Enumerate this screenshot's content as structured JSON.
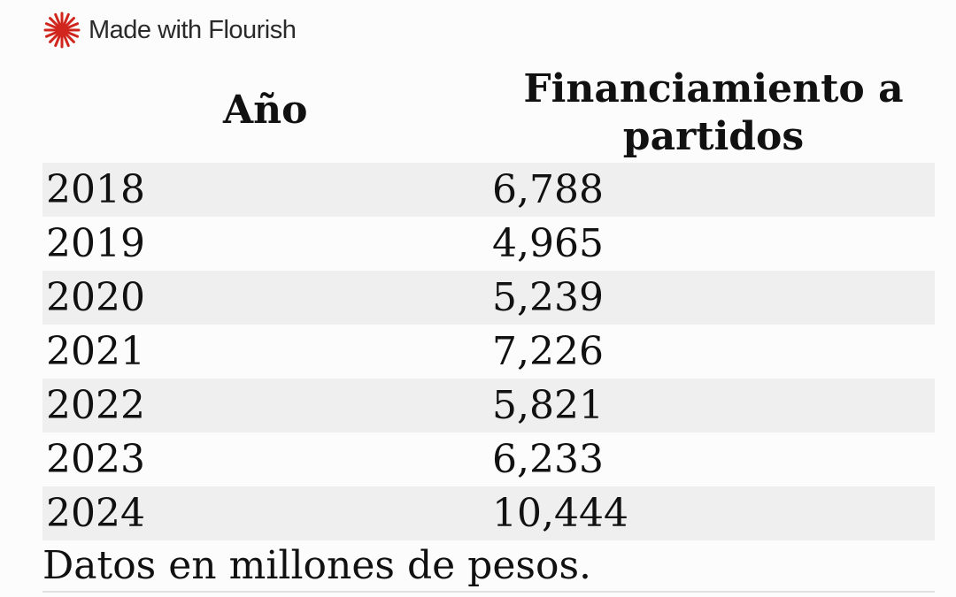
{
  "attribution": {
    "text": "Made with Flourish",
    "icon": "flourish-starburst-icon",
    "icon_color": "#d0261d"
  },
  "chart_data": {
    "type": "table",
    "columns": [
      "Año",
      "Financiamiento a partidos"
    ],
    "header_lines": [
      "Financiamiento a",
      "partidos"
    ],
    "rows": [
      [
        "2018",
        "6,788"
      ],
      [
        "2019",
        "4,965"
      ],
      [
        "2020",
        "5,239"
      ],
      [
        "2021",
        "7,226"
      ],
      [
        "2022",
        "5,821"
      ],
      [
        "2023",
        "6,233"
      ],
      [
        "2024",
        "10,444"
      ]
    ],
    "footnote": "Datos en millones de pesos."
  },
  "colors": {
    "stripe": "#efefef",
    "background": "#fcfcfc",
    "text": "#111111"
  }
}
